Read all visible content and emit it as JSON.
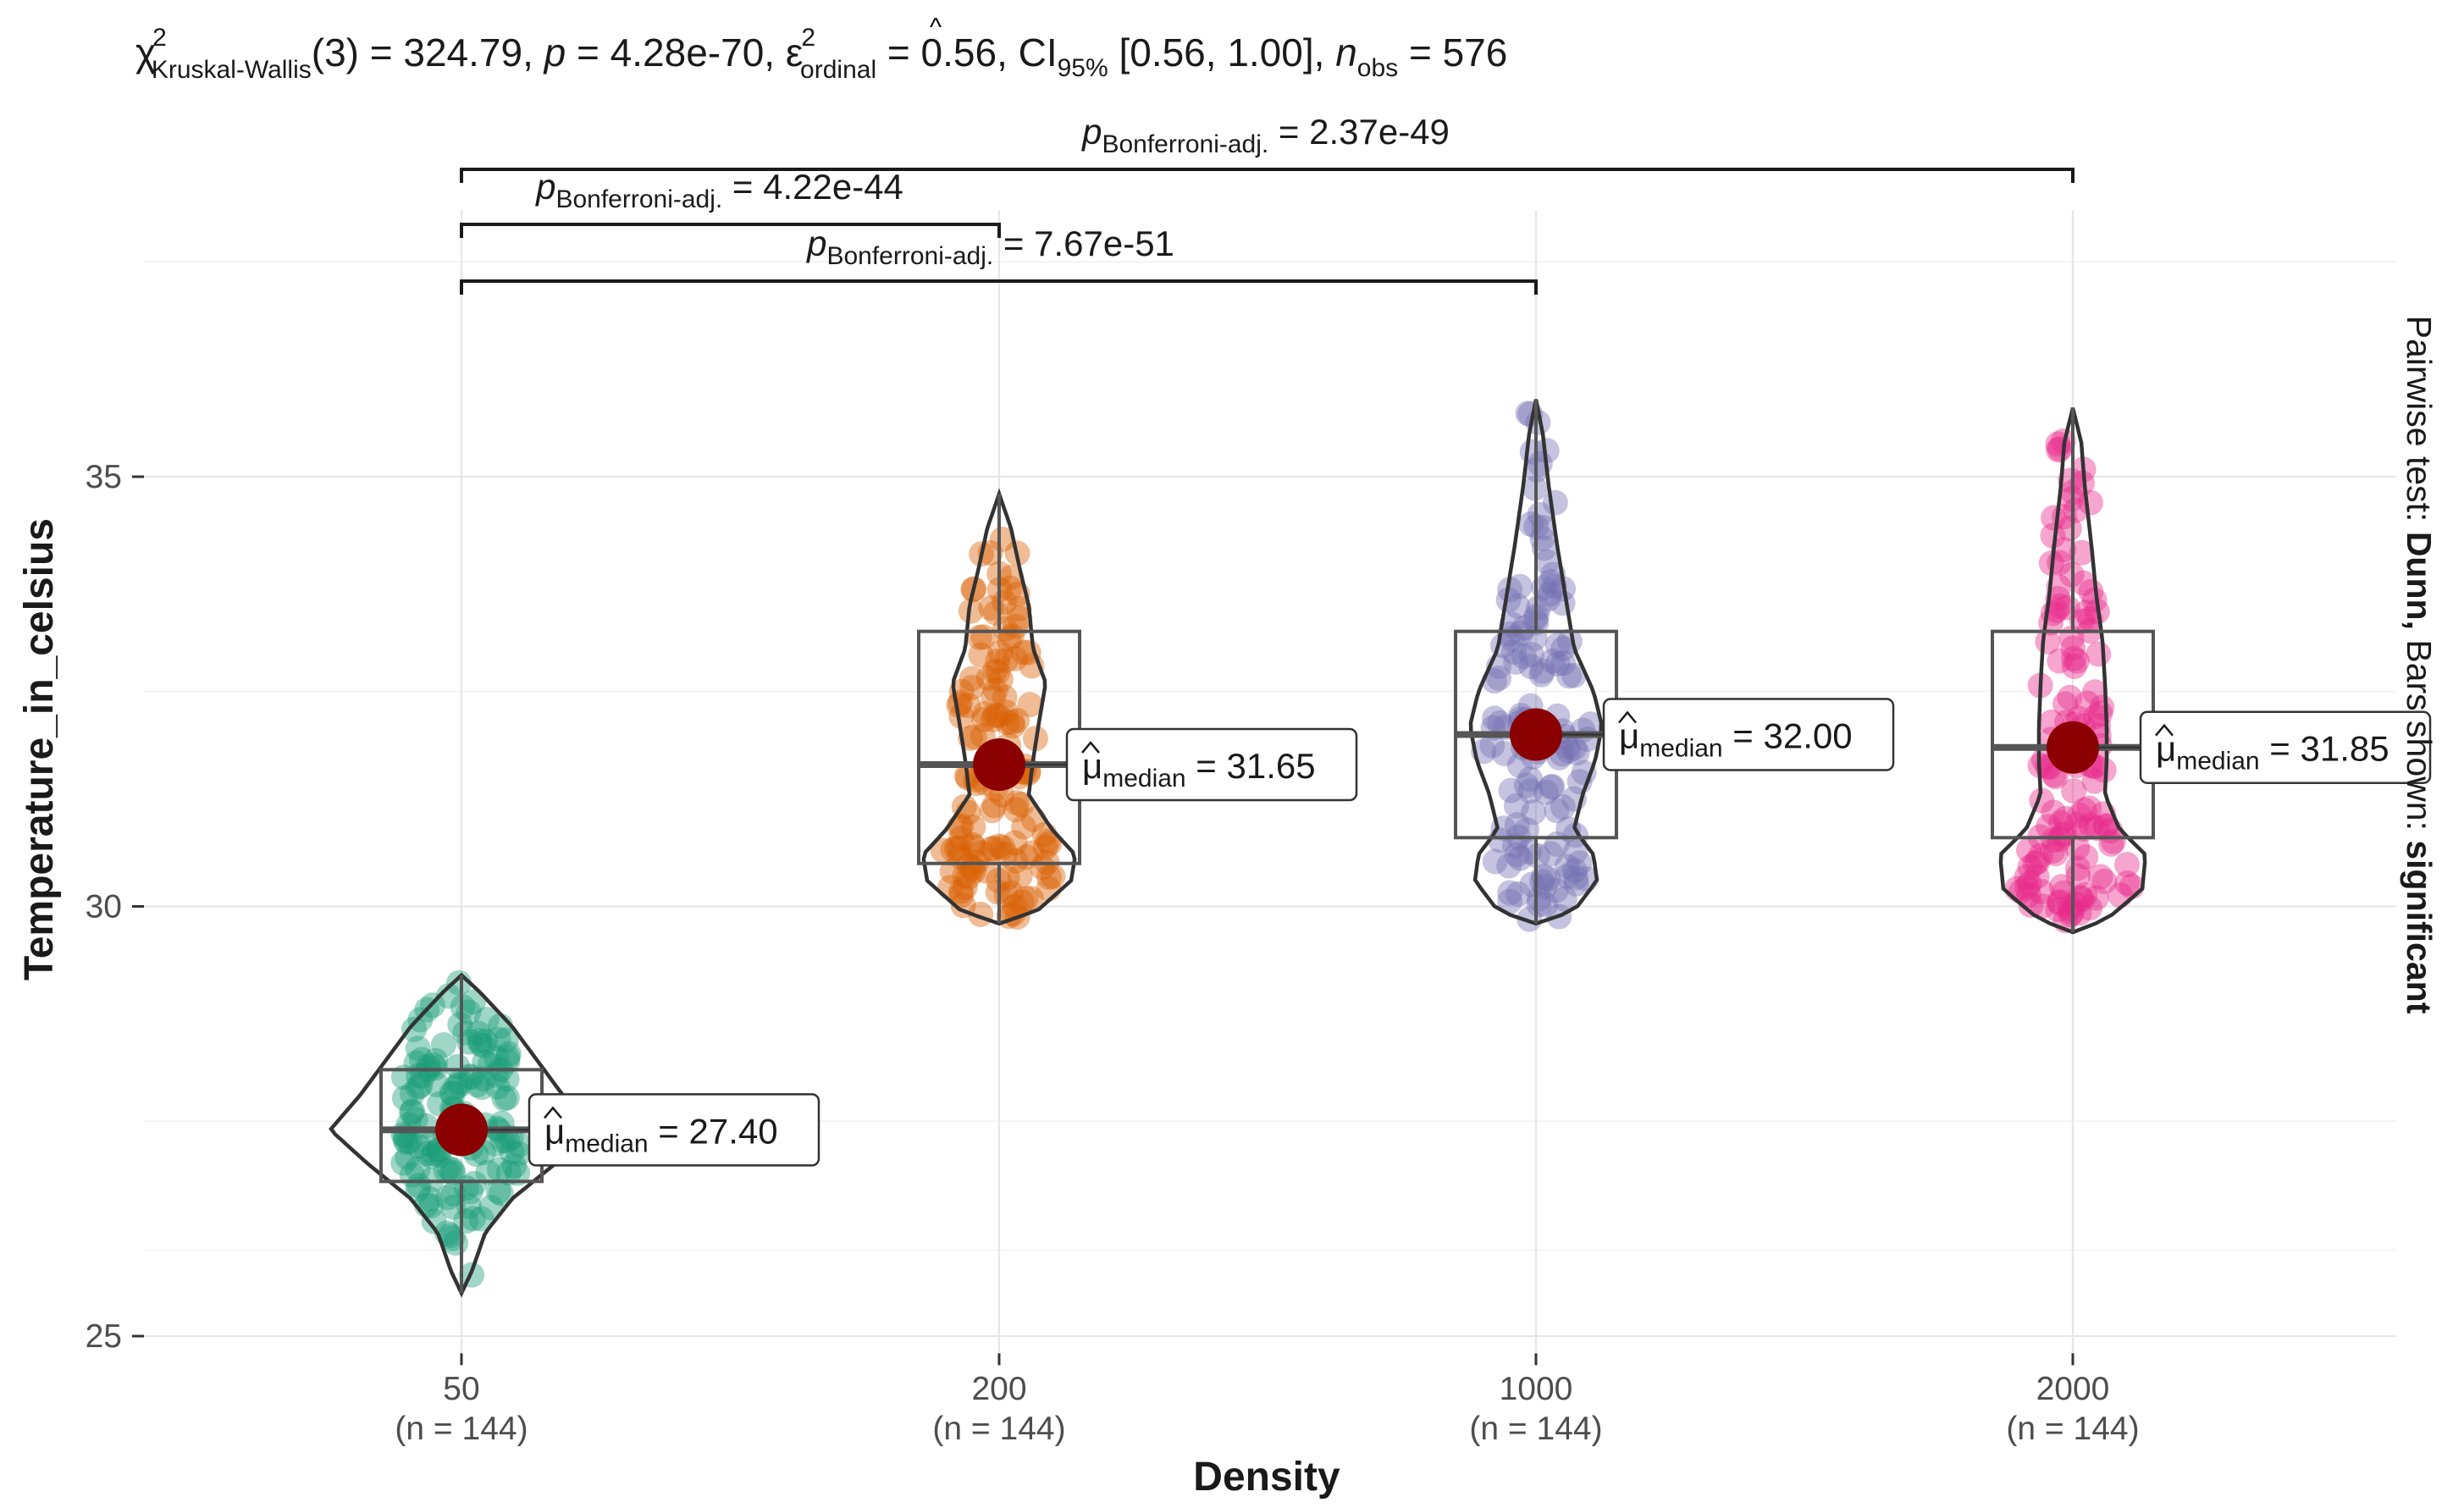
{
  "chart_data": {
    "type": "violin-box",
    "subtitle": {
      "chi_sym": "χ",
      "chi_sup": "2",
      "chi_sub": "Kruskal-Wallis",
      "chi_value": "(3) = 324.79, ",
      "p_label": "p",
      "p_value": " = 4.28e-70, ",
      "eps_sym": "ε",
      "eps_hat": "^",
      "eps_sup": "2",
      "eps_sub": "ordinal",
      "eps_value": " = 0.56, CI",
      "ci_sub": "95%",
      "ci_value": " [0.56, 1.00], ",
      "n_label": "n",
      "n_sub": "obs",
      "n_value": " = 576"
    },
    "xlabel": "Density",
    "ylabel": "Temperature_in_celsius",
    "caption": {
      "prefix": "Pairwise test: ",
      "test": "Dunn,",
      "middle": " Bars shown: ",
      "shown": "significant"
    },
    "ylim": [
      24.8,
      38.1
    ],
    "yticks": [
      25,
      30,
      35
    ],
    "grid": true,
    "categories": [
      {
        "label": "50",
        "n_label": "(n = 144)",
        "color": "#1B9E77",
        "median": 27.4,
        "q1": 26.8,
        "q3": 28.1,
        "whisker_low": 25.5,
        "whisker_high": 29.2,
        "median_label": "27.40"
      },
      {
        "label": "200",
        "n_label": "(n = 144)",
        "color": "#D95F02",
        "median": 31.65,
        "q1": 30.5,
        "q3": 33.2,
        "whisker_low": 29.8,
        "whisker_high": 34.8,
        "median_label": "31.65"
      },
      {
        "label": "1000",
        "n_label": "(n = 144)",
        "color": "#7570B3",
        "median": 32.0,
        "q1": 30.8,
        "q3": 33.2,
        "whisker_low": 29.8,
        "whisker_high": 35.9,
        "median_label": "32.00"
      },
      {
        "label": "2000",
        "n_label": "(n = 144)",
        "color": "#E7298A",
        "median": 31.85,
        "q1": 30.8,
        "q3": 33.2,
        "whisker_low": 29.7,
        "whisker_high": 35.8,
        "median_label": "31.85"
      }
    ],
    "median_label_prefix": "μ",
    "median_label_sub": "median",
    "comparisons": [
      {
        "from": "50",
        "to": "2000",
        "label_sub": "Bonferroni-adj.",
        "p_value": "2.37e-49"
      },
      {
        "from": "50",
        "to": "200",
        "label_sub": "Bonferroni-adj.",
        "p_value": "4.22e-44"
      },
      {
        "from": "50",
        "to": "1000",
        "label_sub": "Bonferroni-adj.",
        "p_value": "7.67e-51"
      }
    ],
    "comparison_p_symbol": "p",
    "mean_point_color": "#8B0000"
  }
}
